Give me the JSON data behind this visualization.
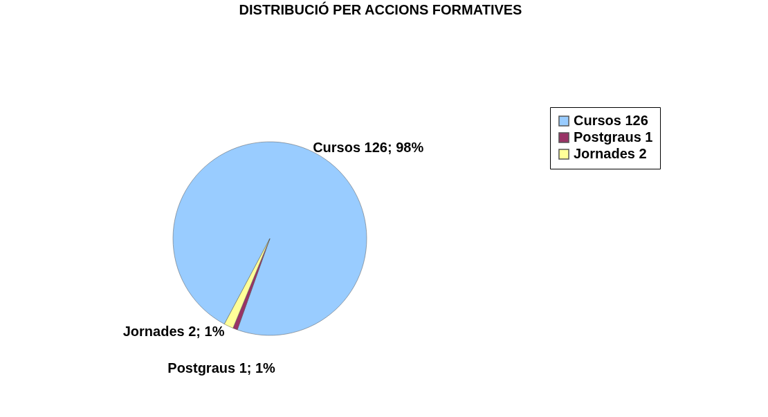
{
  "chart_data": {
    "type": "pie",
    "title": "DISTRIBUCIÓ PER ACCIONS FORMATIVES",
    "categories": [
      "Cursos 126",
      "Postgraus 1",
      "Jornades 2"
    ],
    "values": [
      126,
      1,
      2
    ],
    "colors": [
      "#99ccff",
      "#993366",
      "#ffff99"
    ],
    "value_labels": [
      "Cursos 126; 98%",
      "Postgraus 1; 1%",
      "Jornades 2; 1%"
    ],
    "legend": "right"
  }
}
